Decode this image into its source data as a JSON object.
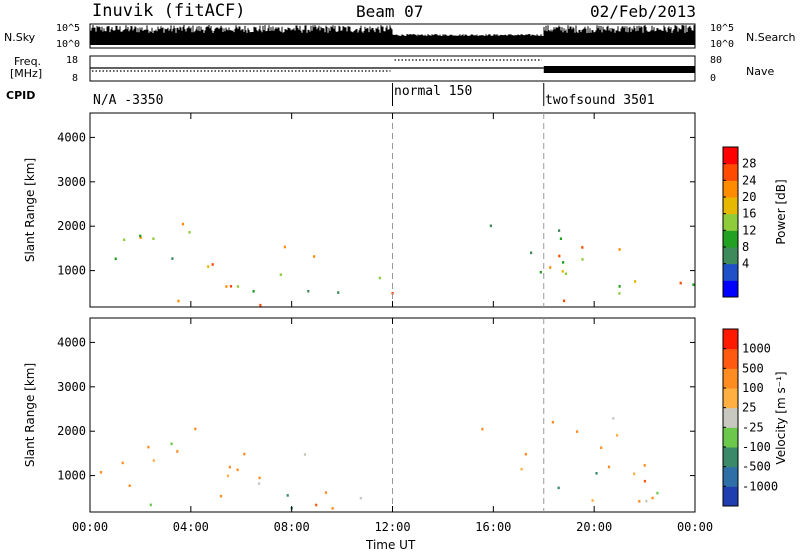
{
  "header": {
    "station": "Inuvik (fitACF)",
    "beam": "Beam 07",
    "date": "02/Feb/2013"
  },
  "noise_panel": {
    "left_label": "N.Sky",
    "right_label": "N.Search",
    "left_ticks": [
      "10^5",
      "10^0"
    ],
    "right_ticks": [
      "10^5",
      "10^0"
    ]
  },
  "freq_panel": {
    "left_label_1": "Freq.",
    "left_label_2": "[MHz]",
    "right_label": "Nave",
    "left_ticks": [
      "18",
      "8"
    ],
    "right_ticks": [
      "80",
      "0"
    ]
  },
  "cpid": {
    "label": "CPID",
    "segments": [
      {
        "name": "N/A -3350",
        "start_hour": 0
      },
      {
        "name": "normal 150",
        "start_hour": 12
      },
      {
        "name": "twofsound 3501",
        "start_hour": 18
      }
    ]
  },
  "x_axis": {
    "label": "Time UT",
    "ticks": [
      "00:00",
      "04:00",
      "08:00",
      "12:00",
      "16:00",
      "20:00",
      "00:00"
    ]
  },
  "chart_data": [
    {
      "type": "heatmap",
      "panel": "power",
      "ylabel": "Slant Range [km]",
      "yticks": [
        "1000",
        "2000",
        "3000",
        "4000"
      ],
      "ylim": [
        180,
        4550
      ],
      "xlim": [
        0,
        24
      ],
      "colorbar_label": "Power [dB]",
      "colorbar_ticks": [
        "28",
        "24",
        "20",
        "16",
        "12",
        "8",
        "4"
      ],
      "colorbar_colors": [
        "#0000ff",
        "#2050c8",
        "#3e8a5a",
        "#22a022",
        "#8ecc3a",
        "#e6b800",
        "#ff8c00",
        "#ff4a00",
        "#ff0000"
      ],
      "vertical_markers_hours": [
        12,
        18
      ]
    },
    {
      "type": "heatmap",
      "panel": "velocity",
      "ylabel": "Slant Range [km]",
      "yticks": [
        "1000",
        "2000",
        "3000",
        "4000"
      ],
      "ylim": [
        180,
        4550
      ],
      "xlim": [
        0,
        24
      ],
      "colorbar_label": "Velocity [m s⁻¹]",
      "colorbar_ticks": [
        "1000",
        "500",
        "100",
        "25",
        "-25",
        "-100",
        "-500",
        "-1000"
      ],
      "colorbar_colors": [
        "#1f3fb0",
        "#2e6fa8",
        "#3a8a6a",
        "#6cc84a",
        "#c8c8c0",
        "#ffb040",
        "#ff8c20",
        "#ff5a10",
        "#ff1a00"
      ],
      "vertical_markers_hours": [
        12,
        18
      ]
    }
  ]
}
